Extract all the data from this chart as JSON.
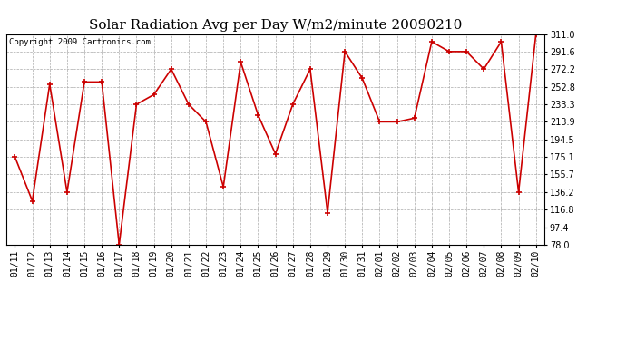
{
  "title": "Solar Radiation Avg per Day W/m2/minute 20090210",
  "copyright": "Copyright 2009 Cartronics.com",
  "labels": [
    "01/11",
    "01/12",
    "01/13",
    "01/14",
    "01/15",
    "01/16",
    "01/17",
    "01/18",
    "01/19",
    "01/20",
    "01/21",
    "01/22",
    "01/23",
    "01/24",
    "01/25",
    "01/26",
    "01/27",
    "01/28",
    "01/29",
    "01/30",
    "01/31",
    "02/01",
    "02/02",
    "02/03",
    "02/04",
    "02/05",
    "02/06",
    "02/07",
    "02/08",
    "02/09",
    "02/10"
  ],
  "values": [
    175.1,
    126.5,
    255.5,
    136.2,
    258.0,
    258.0,
    78.0,
    233.3,
    244.0,
    272.2,
    233.3,
    213.9,
    142.0,
    280.0,
    221.5,
    178.5,
    233.3,
    272.2,
    113.5,
    291.6,
    262.0,
    213.9,
    213.9,
    218.0,
    302.5,
    291.6,
    291.6,
    272.2,
    302.5,
    136.2,
    311.0
  ],
  "ylim": [
    78.0,
    311.0
  ],
  "yticks": [
    78.0,
    97.4,
    116.8,
    136.2,
    155.7,
    175.1,
    194.5,
    213.9,
    233.3,
    252.8,
    272.2,
    291.6,
    311.0
  ],
  "line_color": "#cc0000",
  "marker_color": "#cc0000",
  "bg_color": "#ffffff",
  "grid_color": "#aaaaaa",
  "title_fontsize": 11,
  "copyright_fontsize": 6.5,
  "tick_fontsize": 7,
  "ytick_fontsize": 7
}
